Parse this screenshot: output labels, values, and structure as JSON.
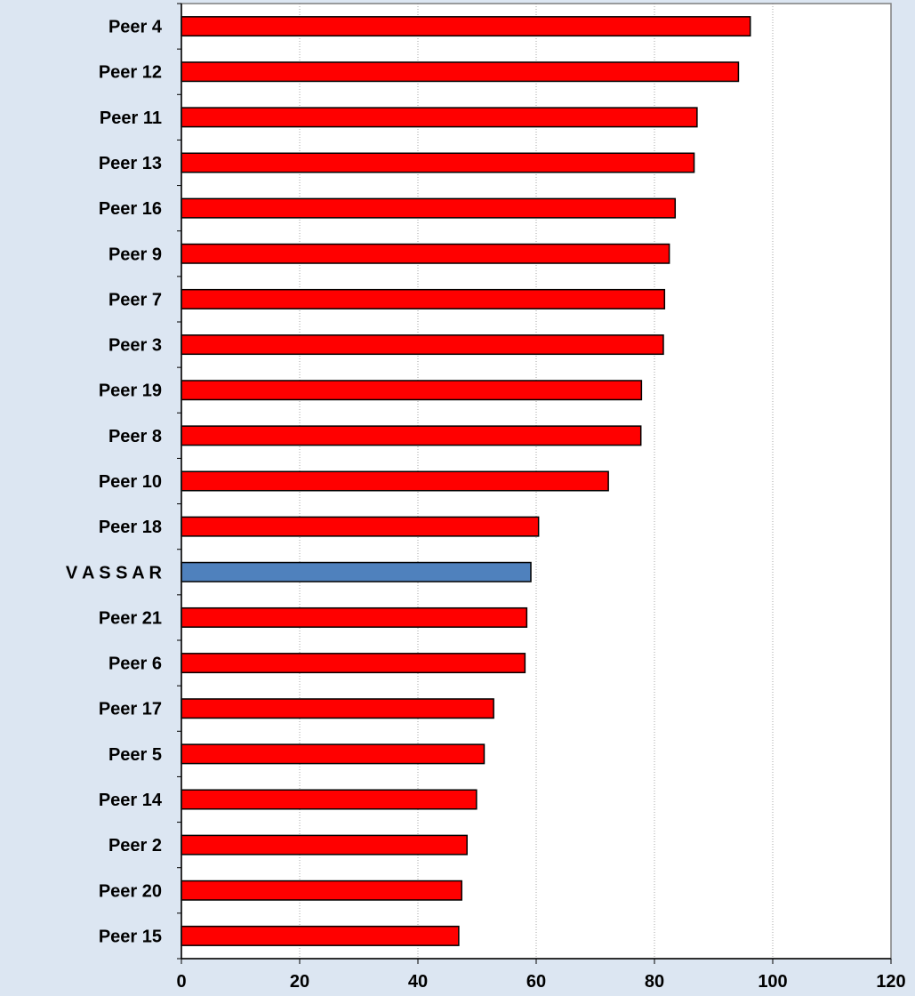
{
  "chart_data": {
    "type": "bar",
    "orientation": "horizontal",
    "categories": [
      "Peer 4",
      "Peer 12",
      "Peer 11",
      "Peer 13",
      "Peer 16",
      "Peer 9",
      "Peer 7",
      "Peer 3",
      "Peer 19",
      "Peer 8",
      "Peer 10",
      "Peer 18",
      "V A S S A R",
      "Peer 21",
      "Peer 6",
      "Peer 17",
      "Peer 5",
      "Peer 14",
      "Peer 2",
      "Peer 20",
      "Peer 15"
    ],
    "values": [
      96.2,
      94.2,
      87.2,
      86.7,
      83.5,
      82.5,
      81.7,
      81.5,
      77.8,
      77.7,
      72.2,
      60.4,
      59.1,
      58.4,
      58.1,
      52.8,
      51.2,
      49.9,
      48.3,
      47.4,
      46.9
    ],
    "highlight": "V A S S A R",
    "colors": {
      "default": "#ff0000",
      "highlight": "#4f81bd",
      "plot_bg": "#ffffff",
      "page_bg": "#dce6f2",
      "grid": "#a6a6a6"
    },
    "xlim": [
      0,
      120
    ],
    "xticks": [
      0,
      20,
      40,
      60,
      80,
      100,
      120
    ],
    "grid": true,
    "title": "",
    "xlabel": "",
    "ylabel": ""
  }
}
